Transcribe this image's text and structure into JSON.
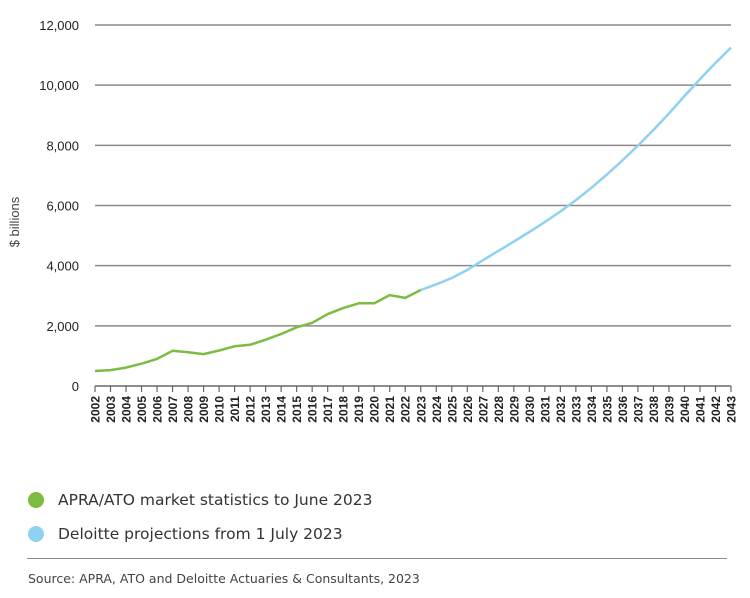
{
  "chart_data": {
    "type": "line",
    "title": "",
    "xlabel": "",
    "ylabel": "$ billions",
    "ylim": [
      0,
      12000
    ],
    "yticks": [
      0,
      2000,
      4000,
      6000,
      8000,
      10000,
      12000
    ],
    "ytick_labels": [
      "0",
      "2,000",
      "4,000",
      "6,000",
      "8,000",
      "10,000",
      "12,000"
    ],
    "grid": "horizontal",
    "categories": [
      "2002",
      "2003",
      "2004",
      "2005",
      "2006",
      "2007",
      "2008",
      "2009",
      "2010",
      "2011",
      "2012",
      "2013",
      "2014",
      "2015",
      "2016",
      "2017",
      "2018",
      "2019",
      "2020",
      "2021",
      "2022",
      "2023",
      "2024",
      "2025",
      "2026",
      "2027",
      "2028",
      "2029",
      "2030",
      "2031",
      "2032",
      "2033",
      "2034",
      "2035",
      "2036",
      "2037",
      "2038",
      "2039",
      "2040",
      "2041",
      "2042",
      "2043"
    ],
    "series": [
      {
        "name": "APRA/ATO market statistics to June 2023",
        "color": "#7dbb42",
        "x": [
          "2002",
          "2003",
          "2004",
          "2005",
          "2006",
          "2007",
          "2008",
          "2009",
          "2010",
          "2011",
          "2012",
          "2013",
          "2014",
          "2015",
          "2016",
          "2017",
          "2018",
          "2019",
          "2020",
          "2021",
          "2022",
          "2023"
        ],
        "values": [
          500,
          530,
          610,
          740,
          900,
          1170,
          1120,
          1060,
          1180,
          1320,
          1370,
          1540,
          1730,
          1950,
          2100,
          2390,
          2590,
          2750,
          2750,
          3020,
          2930,
          3190
        ]
      },
      {
        "name": "Deloitte projections from 1 July 2023",
        "color": "#8fd1f0",
        "x": [
          "2023",
          "2024",
          "2025",
          "2026",
          "2027",
          "2028",
          "2029",
          "2030",
          "2031",
          "2032",
          "2033",
          "2034",
          "2035",
          "2036",
          "2037",
          "2038",
          "2039",
          "2040",
          "2041",
          "2042",
          "2043"
        ],
        "values": [
          3190,
          3380,
          3590,
          3860,
          4180,
          4490,
          4800,
          5120,
          5450,
          5800,
          6180,
          6590,
          7030,
          7500,
          7990,
          8510,
          9060,
          9640,
          10200,
          10740,
          11250
        ]
      }
    ],
    "legend_position": "bottom-left",
    "source": "Source: APRA, ATO and Deloitte Actuaries & Consultants, 2023"
  },
  "legend": [
    {
      "label": "APRA/ATO market statistics to June 2023",
      "color": "#7dbb42"
    },
    {
      "label": "Deloitte projections from 1 July 2023",
      "color": "#8fd1f0"
    }
  ],
  "footer": {
    "source": "Source: APRA, ATO and Deloitte Actuaries & Consultants, 2023"
  }
}
